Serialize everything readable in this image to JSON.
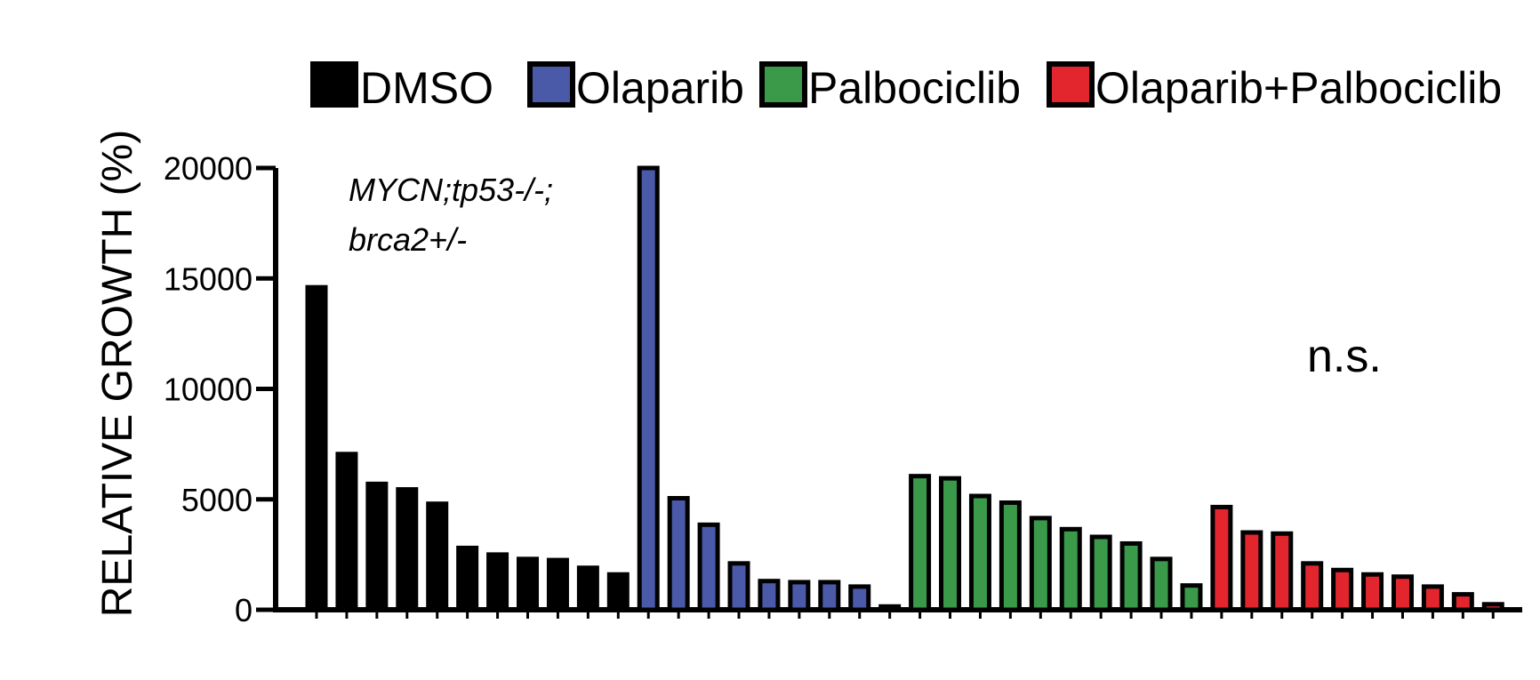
{
  "chart_data": {
    "type": "bar",
    "title": "",
    "xlabel": "",
    "ylabel": "RELATIVE GROWTH (%)",
    "ylim": [
      0,
      20000
    ],
    "yticks": [
      0,
      5000,
      10000,
      15000,
      20000
    ],
    "legend_position": "top",
    "grid": false,
    "annotation_lines": [
      "MYCN;tp53-/-;",
      "brca2+/-"
    ],
    "significance": "n.s.",
    "series": [
      {
        "name": "DMSO",
        "color": "#000000",
        "fill": "#000000",
        "values": [
          14600,
          7050,
          5700,
          5450,
          4800,
          2800,
          2500,
          2300,
          2250,
          1900,
          1600
        ]
      },
      {
        "name": "Olaparib",
        "color": "#000000",
        "fill": "#4a5aa8",
        "values": [
          20000,
          5050,
          3850,
          2100,
          1300,
          1250,
          1250,
          1050,
          150
        ]
      },
      {
        "name": "Palbociclib",
        "color": "#000000",
        "fill": "#3a9a4a",
        "values": [
          6050,
          5950,
          5150,
          4850,
          4150,
          3650,
          3300,
          3000,
          2300,
          1100
        ]
      },
      {
        "name": "Olaparib+Palbociclib",
        "color": "#000000",
        "fill": "#e3262e",
        "values": [
          4650,
          3500,
          3450,
          2100,
          1800,
          1600,
          1500,
          1050,
          700,
          250
        ]
      }
    ]
  }
}
